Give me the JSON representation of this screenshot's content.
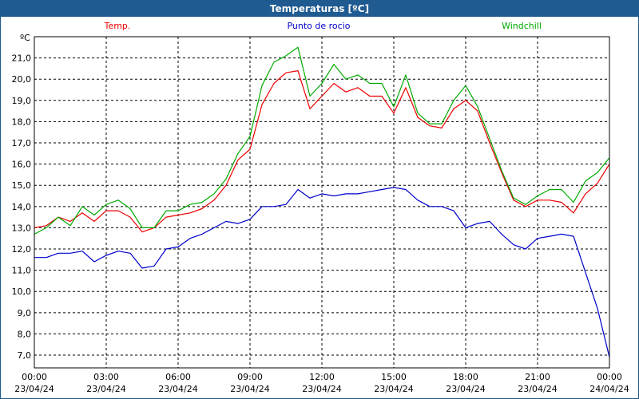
{
  "window": {
    "title": "Temperaturas [ºC]"
  },
  "colors": {
    "temp": "#ee0000",
    "dew": "#0000cc",
    "wind": "#00aa00",
    "grid": "#000000",
    "title_bg": "#1f5a90"
  },
  "chart_data": {
    "type": "line",
    "title": "Temperaturas [ºC]",
    "ylabel": "ºC",
    "xlabel": "",
    "ylim": [
      6.4,
      22.0
    ],
    "xlim": [
      0,
      24
    ],
    "grid": true,
    "legend_position": "top",
    "y_ticks": [
      7.0,
      8.0,
      9.0,
      10.0,
      11.0,
      12.0,
      13.0,
      14.0,
      15.0,
      16.0,
      17.0,
      18.0,
      19.0,
      20.0,
      21.0
    ],
    "y_tick_labels": [
      "7,0",
      "8,0",
      "9,0",
      "10,0",
      "11,0",
      "12,0",
      "13,0",
      "14,0",
      "15,0",
      "16,0",
      "17,0",
      "18,0",
      "19,0",
      "20,0",
      "21,0"
    ],
    "x_ticks": [
      0,
      3,
      6,
      9,
      12,
      15,
      18,
      21,
      24
    ],
    "x_tick_labels": [
      [
        "00:00",
        "23/04/24"
      ],
      [
        "03:00",
        "23/04/24"
      ],
      [
        "06:00",
        "23/04/24"
      ],
      [
        "09:00",
        "23/04/24"
      ],
      [
        "12:00",
        "23/04/24"
      ],
      [
        "15:00",
        "23/04/24"
      ],
      [
        "18:00",
        "23/04/24"
      ],
      [
        "21:00",
        "23/04/24"
      ],
      [
        "00:00",
        "24/04/24"
      ]
    ],
    "series": [
      {
        "name": "Temp.",
        "color": "#ee0000",
        "x": [
          0,
          0.5,
          1,
          1.5,
          2,
          2.5,
          3,
          3.5,
          4,
          4.5,
          5,
          5.5,
          6,
          6.5,
          7,
          7.5,
          8,
          8.5,
          9,
          9.5,
          10,
          10.5,
          11,
          11.5,
          12,
          12.5,
          13,
          13.5,
          14,
          14.5,
          15,
          15.5,
          16,
          16.5,
          17,
          17.5,
          18,
          18.5,
          19,
          19.5,
          20,
          20.5,
          21,
          21.5,
          22,
          22.5,
          23,
          23.5,
          24
        ],
        "values": [
          13.0,
          13.1,
          13.5,
          13.3,
          13.7,
          13.3,
          13.8,
          13.8,
          13.5,
          12.8,
          13.0,
          13.5,
          13.6,
          13.7,
          13.9,
          14.3,
          15.0,
          16.2,
          16.7,
          18.8,
          19.8,
          20.3,
          20.4,
          18.6,
          19.2,
          19.8,
          19.4,
          19.6,
          19.2,
          19.2,
          18.4,
          19.6,
          18.2,
          17.8,
          17.7,
          18.6,
          19.0,
          18.5,
          17.0,
          15.6,
          14.3,
          14.0,
          14.3,
          14.3,
          14.2,
          13.7,
          14.6,
          15.1,
          16.0
        ]
      },
      {
        "name": "Punto de rocio",
        "color": "#0000cc",
        "x": [
          0,
          0.5,
          1,
          1.5,
          2,
          2.5,
          3,
          3.5,
          4,
          4.5,
          5,
          5.5,
          6,
          6.5,
          7,
          7.5,
          8,
          8.5,
          9,
          9.5,
          10,
          10.5,
          11,
          11.5,
          12,
          12.5,
          13,
          13.5,
          14,
          14.5,
          15,
          15.5,
          16,
          16.5,
          17,
          17.5,
          18,
          18.5,
          19,
          19.5,
          20,
          20.5,
          21,
          21.5,
          22,
          22.5,
          23,
          23.5,
          24
        ],
        "values": [
          11.6,
          11.6,
          11.8,
          11.8,
          11.9,
          11.4,
          11.7,
          11.9,
          11.8,
          11.1,
          11.2,
          12.0,
          12.1,
          12.5,
          12.7,
          13.0,
          13.3,
          13.2,
          13.4,
          14.0,
          14.0,
          14.1,
          14.8,
          14.4,
          14.6,
          14.5,
          14.6,
          14.6,
          14.7,
          14.8,
          14.9,
          14.8,
          14.3,
          14.0,
          14.0,
          13.8,
          13.0,
          13.2,
          13.3,
          12.7,
          12.2,
          12.0,
          12.5,
          12.6,
          12.7,
          12.6,
          10.9,
          9.2,
          6.9
        ]
      },
      {
        "name": "Windchill",
        "color": "#00aa00",
        "x": [
          0,
          0.5,
          1,
          1.5,
          2,
          2.5,
          3,
          3.5,
          4,
          4.5,
          5,
          5.5,
          6,
          6.5,
          7,
          7.5,
          8,
          8.5,
          9,
          9.5,
          10,
          10.5,
          11,
          11.5,
          12,
          12.5,
          13,
          13.5,
          14,
          14.5,
          15,
          15.5,
          16,
          16.5,
          17,
          17.5,
          18,
          18.5,
          19,
          19.5,
          20,
          20.5,
          21,
          21.5,
          22,
          22.5,
          23,
          23.5,
          24
        ],
        "values": [
          12.7,
          13.0,
          13.5,
          13.1,
          14.0,
          13.6,
          14.1,
          14.3,
          13.9,
          13.0,
          13.0,
          13.8,
          13.8,
          14.1,
          14.2,
          14.6,
          15.3,
          16.5,
          17.3,
          19.7,
          20.8,
          21.1,
          21.5,
          19.2,
          19.8,
          20.7,
          20.0,
          20.2,
          19.8,
          19.8,
          18.7,
          20.2,
          18.4,
          17.9,
          17.9,
          19.0,
          19.7,
          18.7,
          17.2,
          15.7,
          14.4,
          14.1,
          14.5,
          14.8,
          14.8,
          14.2,
          15.2,
          15.6,
          16.3
        ]
      }
    ]
  }
}
